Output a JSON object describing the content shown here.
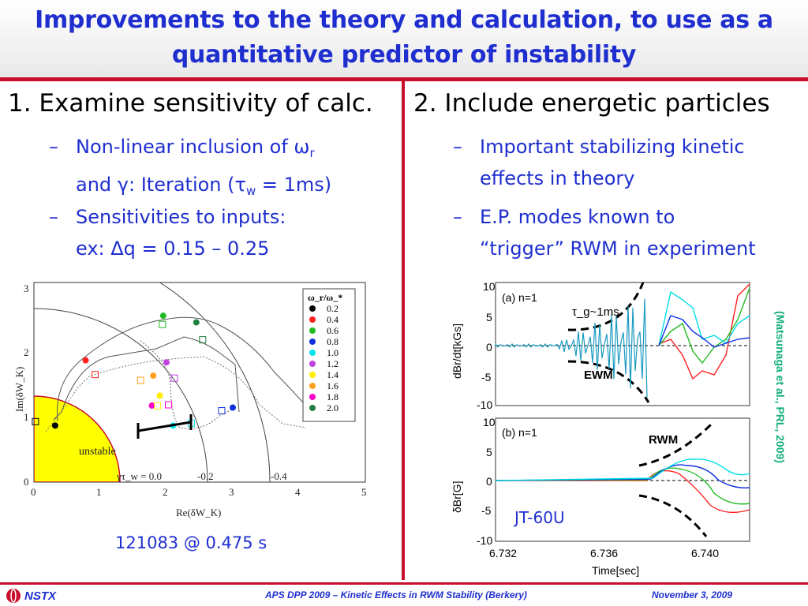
{
  "title": {
    "line1": "Improvements to the theory and calculation, to use as a",
    "line2": "quantitative predictor of instability"
  },
  "left_column": {
    "heading": "1. Examine sensitivity of calc.",
    "bullet1": {
      "dash": "–",
      "line1_pre": "Non-linear inclusion of ω",
      "line1_sub": "r",
      "line2_pre": "and γ: Iteration (τ",
      "line2_sub": "w",
      "line2_post": " = 1ms)"
    },
    "bullet2": {
      "dash": "–",
      "line1": "Sensitivities to inputs:",
      "line2": "ex: Δq = 0.15 – 0.25"
    },
    "caption": "121083 @ 0.475 s"
  },
  "right_column": {
    "heading": "2. Include energetic particles",
    "bullet1": {
      "dash": "–",
      "line1": "Important stabilizing kinetic",
      "line2": "effects in theory"
    },
    "bullet2": {
      "dash": "–",
      "line1": "E.P. modes known to",
      "line2": "“trigger” RWM in experiment"
    }
  },
  "side_reference": "(Matsunaga et al., PRL, 2009)",
  "footer": {
    "logo_text": "NSTX",
    "center": "APS DPP 2009 – Kinetic Effects in RWM Stability (Berkery)",
    "right": "November 3, 2009"
  },
  "colors": {
    "title_blue": "#1f2fcf",
    "accent_red": "#c8102e",
    "ref_green": "#13b07a",
    "unstable_yellow": "#ffff00"
  },
  "chart_data": [
    {
      "type": "scatter",
      "xlabel": "Re(δW_K)",
      "ylabel": "Im(δW_K)",
      "xlim": [
        0,
        5
      ],
      "ylim": [
        0,
        3
      ],
      "xticks": [
        "0",
        "1",
        "2",
        "3",
        "4",
        "5"
      ],
      "yticks": [
        "0",
        "1",
        "2",
        "3"
      ],
      "region_label": "unstable",
      "contour_labels": [
        "γτ_w = 0.0",
        "-0.2",
        "-0.4"
      ],
      "legend_title": "ω_r/ω_*",
      "series": [
        {
          "name": "0.2",
          "color": "#000000",
          "x": 0.32,
          "y": 0.85
        },
        {
          "name": "0.4",
          "color": "#ff2020",
          "x": 0.78,
          "y": 1.83
        },
        {
          "name": "0.6",
          "color": "#22bb22",
          "x": 1.95,
          "y": 2.5
        },
        {
          "name": "0.8",
          "color": "#1030e0",
          "x": 3.0,
          "y": 1.12
        },
        {
          "name": "1.0",
          "color": "#00e5ee",
          "x": 2.1,
          "y": 0.85
        },
        {
          "name": "1.2",
          "color": "#c040e0",
          "x": 2.0,
          "y": 1.8
        },
        {
          "name": "1.4",
          "color": "#ffee00",
          "x": 1.9,
          "y": 1.3
        },
        {
          "name": "1.6",
          "color": "#ffa020",
          "x": 1.8,
          "y": 1.6
        },
        {
          "name": "1.8",
          "color": "#ff00cc",
          "x": 1.78,
          "y": 1.15
        },
        {
          "name": "2.0",
          "color": "#208040",
          "x": 2.45,
          "y": 2.4
        }
      ]
    },
    {
      "type": "line",
      "panel": "(a) n=1",
      "ylabel": "dBr/dt[kGs]",
      "ylim": [
        -10,
        10
      ],
      "yticks": [
        "10",
        "5",
        "0",
        "-5",
        "-10"
      ],
      "annotations": [
        "τ_g~1ms",
        "EWM"
      ]
    },
    {
      "type": "line",
      "panel": "(b) n=1",
      "ylabel": "δBr[G]",
      "xlabel": "Time[sec]",
      "xlim": [
        6.732,
        6.742
      ],
      "ylim": [
        -10,
        10
      ],
      "xticks": [
        "6.732",
        "6.736",
        "6.740"
      ],
      "yticks": [
        "10",
        "5",
        "0",
        "-5",
        "-10"
      ],
      "annotations": [
        "RWM",
        "JT-60U"
      ]
    }
  ]
}
